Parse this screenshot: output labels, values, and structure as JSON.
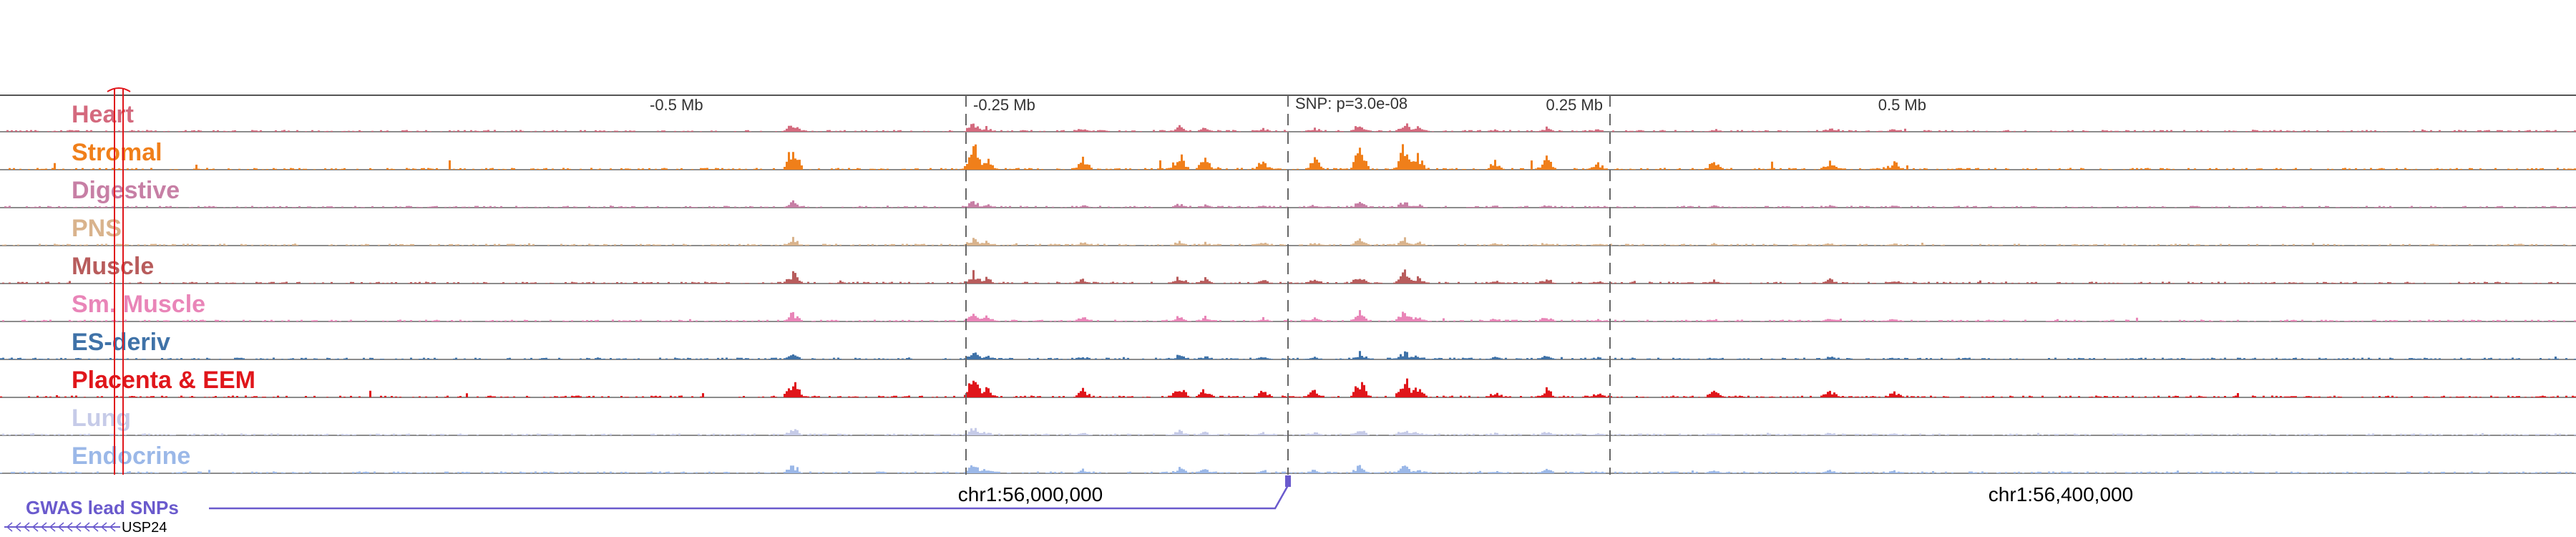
{
  "ruler": {
    "ticks": [
      {
        "pos": -0.5,
        "label": "-0.5 Mb"
      },
      {
        "pos": -0.25,
        "label": "-0.25 Mb"
      },
      {
        "pos": 0.25,
        "label": "0.25 Mb"
      },
      {
        "pos": 0.5,
        "label": "0.5 Mb"
      }
    ],
    "snp_label": "SNP: p=3.0e-08"
  },
  "tracks": [
    {
      "name": "Heart",
      "color": "#d46a7e",
      "scale": 0.35
    },
    {
      "name": "Stromal",
      "color": "#f07f1a",
      "scale": 1.0
    },
    {
      "name": "Digestive",
      "color": "#c77fa5",
      "scale": 0.25
    },
    {
      "name": "PNS",
      "color": "#d9b38c",
      "scale": 0.3
    },
    {
      "name": "Muscle",
      "color": "#b85c5c",
      "scale": 0.45
    },
    {
      "name": "Sm. Muscle",
      "color": "#e985b8",
      "scale": 0.4
    },
    {
      "name": "ES-deriv",
      "color": "#3f72a8",
      "scale": 0.3
    },
    {
      "name": "Placenta & EEM",
      "color": "#e0161b",
      "scale": 0.75
    },
    {
      "name": "Lung",
      "color": "#c6cbe8",
      "scale": 0.3
    },
    {
      "name": "Endocrine",
      "color": "#9bb8e8",
      "scale": 0.35
    }
  ],
  "coordinates": [
    {
      "pos": -0.2,
      "label": "chr1:56,000,000"
    },
    {
      "pos": 0.6,
      "label": "chr1:56,400,000"
    }
  ],
  "gwas": {
    "label": "GWAS lead SNPs",
    "color": "#6a5acd"
  },
  "gene": {
    "label": "USP24",
    "strand": "-"
  },
  "colors": {
    "highlight": "#e0161b",
    "divider": "#555555"
  }
}
